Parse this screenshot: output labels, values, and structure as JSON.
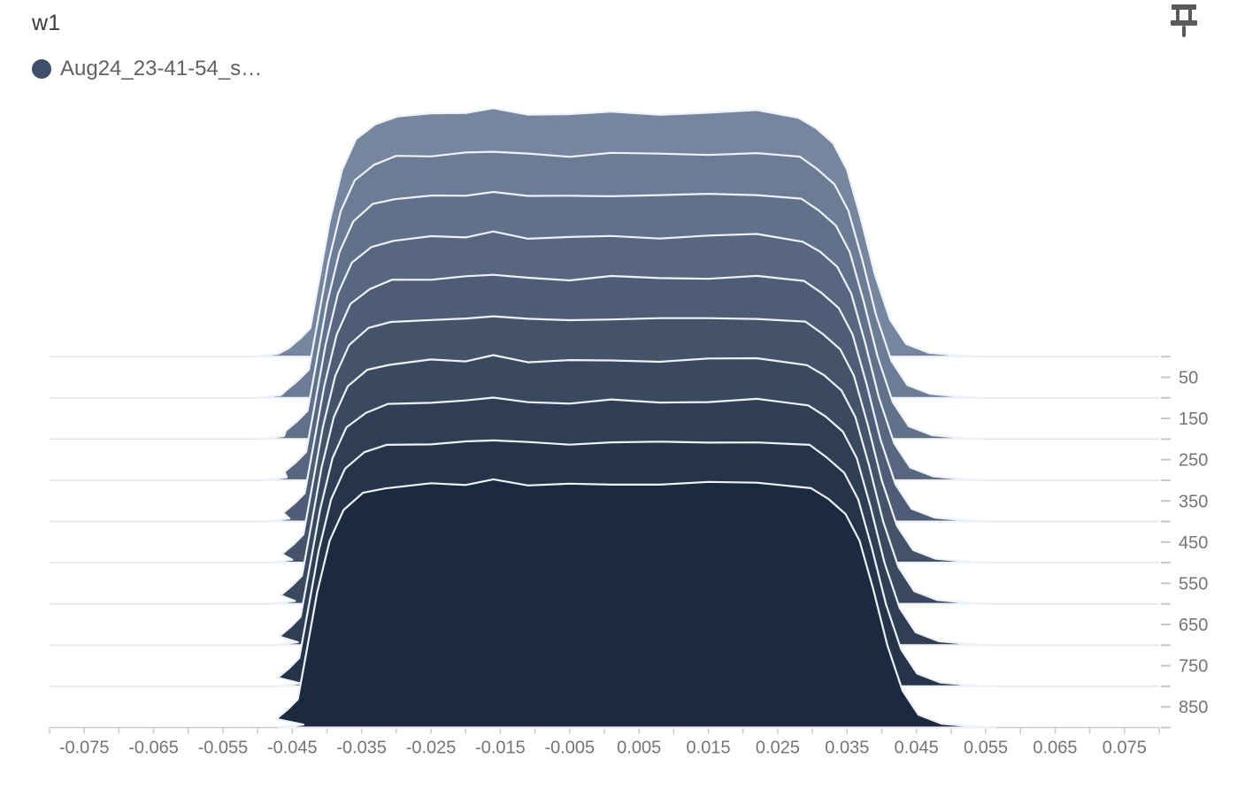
{
  "card": {
    "title": "w1"
  },
  "legend": {
    "run_name": "Aug24_23-41-54_s…",
    "dot_color": "#3e4f6b"
  },
  "toolbar": {
    "pin_icon_color": "#5a5a5a"
  },
  "chart_data": {
    "type": "area",
    "subtype": "ridgeline-histogram-offset",
    "title": "w1",
    "run": "Aug24_23-41-54_s…",
    "legend_position": "top-left",
    "grid": "horizontal-baselines",
    "x_axis": {
      "min": -0.08,
      "max": 0.08,
      "minor_tick_interval": 0.005,
      "labels": [
        "-0.075",
        "-0.065",
        "-0.055",
        "-0.045",
        "-0.035",
        "-0.025",
        "-0.015",
        "-0.005",
        "0.005",
        "0.015",
        "0.025",
        "0.035",
        "0.045",
        "0.055",
        "0.065",
        "0.075"
      ]
    },
    "y_axis": {
      "side": "right",
      "unit": "step",
      "min": 0,
      "max": 900,
      "tick_interval": 50,
      "labels": [
        50,
        150,
        250,
        350,
        450,
        550,
        650,
        750,
        850
      ]
    },
    "steps": [
      0,
      100,
      200,
      300,
      400,
      500,
      600,
      700,
      800,
      900
    ],
    "colors": {
      "back_fill": "#76869f",
      "front_fill": "#1c2940",
      "slice_stroke": "#edf2f8",
      "gridline": "#e3e3e3",
      "axis": "#cbcbcb",
      "tick": "#c8c8c8",
      "label": "#757575"
    },
    "base_shape_value_height": [
      [
        -0.0505,
        0.0
      ],
      [
        -0.047,
        0.012
      ],
      [
        -0.0455,
        0.035
      ],
      [
        -0.0438,
        0.075
      ],
      [
        -0.0424,
        0.115
      ],
      [
        -0.0412,
        0.3
      ],
      [
        -0.0396,
        0.55
      ],
      [
        -0.0378,
        0.76
      ],
      [
        -0.0358,
        0.885
      ],
      [
        -0.033,
        0.95
      ],
      [
        -0.0298,
        0.978
      ],
      [
        -0.025,
        0.988
      ],
      [
        -0.02,
        0.992
      ],
      [
        -0.016,
        1.006
      ],
      [
        -0.011,
        0.988
      ],
      [
        -0.005,
        0.986
      ],
      [
        0.001,
        0.993
      ],
      [
        0.008,
        0.989
      ],
      [
        0.015,
        0.993
      ],
      [
        0.022,
        0.997
      ],
      [
        0.028,
        0.976
      ],
      [
        0.0305,
        0.93
      ],
      [
        0.033,
        0.868
      ],
      [
        0.035,
        0.76
      ],
      [
        0.037,
        0.56
      ],
      [
        0.039,
        0.335
      ],
      [
        0.0412,
        0.15
      ],
      [
        0.0435,
        0.052
      ],
      [
        0.0468,
        0.016
      ],
      [
        0.0515,
        0.004
      ],
      [
        0.0545,
        0.0
      ]
    ],
    "spread_per_slice": {
      "left_tail": 0.0004,
      "edge": 0.0002,
      "right_tail": 0.0002
    }
  }
}
